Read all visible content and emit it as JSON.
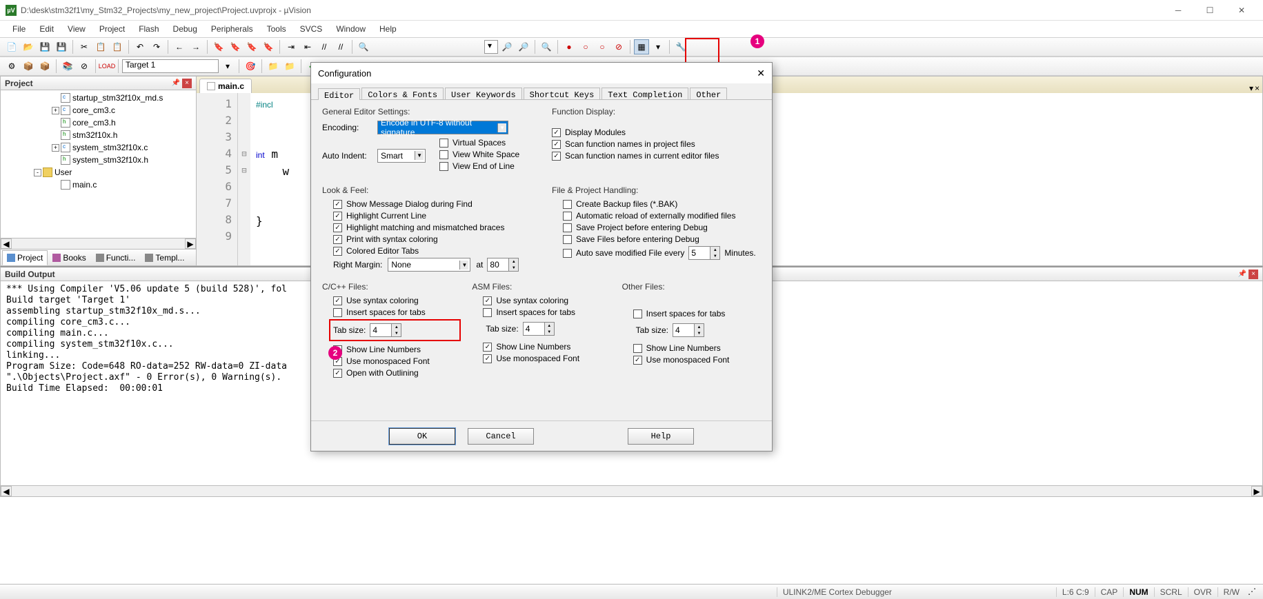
{
  "window": {
    "title": "D:\\desk\\stm32f1\\my_Stm32_Projects\\my_new_project\\Project.uvprojx - µVision",
    "appicon_text": "µV"
  },
  "menu": [
    "File",
    "Edit",
    "View",
    "Project",
    "Flash",
    "Debug",
    "Peripherals",
    "Tools",
    "SVCS",
    "Window",
    "Help"
  ],
  "toolbar2": {
    "target": "Target 1"
  },
  "callouts": {
    "n1": "1",
    "n2": "2"
  },
  "project_panel": {
    "title": "Project",
    "tree": [
      {
        "indent": 70,
        "icon": "cfile",
        "label": "startup_stm32f10x_md.s",
        "sq": ""
      },
      {
        "indent": 70,
        "icon": "cfile",
        "label": "core_cm3.c",
        "sq": "+"
      },
      {
        "indent": 70,
        "icon": "hfile",
        "label": "core_cm3.h",
        "sq": ""
      },
      {
        "indent": 70,
        "icon": "hfile",
        "label": "stm32f10x.h",
        "sq": ""
      },
      {
        "indent": 70,
        "icon": "cfile",
        "label": "system_stm32f10x.c",
        "sq": "+"
      },
      {
        "indent": 70,
        "icon": "hfile",
        "label": "system_stm32f10x.h",
        "sq": ""
      },
      {
        "indent": 44,
        "icon": "fold",
        "label": "User",
        "sq": "-"
      },
      {
        "indent": 70,
        "icon": "doc",
        "label": "main.c",
        "sq": ""
      }
    ],
    "tabs": [
      {
        "label": "Project",
        "active": true,
        "icon": "#5a8fce"
      },
      {
        "label": "Books",
        "active": false,
        "icon": "#b05aa0"
      },
      {
        "label": "Functi...",
        "active": false,
        "icon": "#888"
      },
      {
        "label": "Templ...",
        "active": false,
        "icon": "#888"
      }
    ]
  },
  "editor": {
    "filename": "main.c",
    "lines": [
      "1",
      "2",
      "3",
      "4",
      "5",
      "6",
      "7",
      "8",
      "9"
    ],
    "fold": [
      "",
      "",
      "",
      "⊟",
      "⊟",
      "",
      "",
      "",
      ""
    ],
    "code_html": "<span class='pp'>#incl</span>\n\n\n<span class='kw'>int</span> m\n    w\n\n\n}\n"
  },
  "build": {
    "title": "Build Output",
    "text": "*** Using Compiler 'V5.06 update 5 (build 528)', fol\nBuild target 'Target 1'\nassembling startup_stm32f10x_md.s...\ncompiling core_cm3.c...\ncompiling main.c...\ncompiling system_stm32f10x.c...\nlinking...\nProgram Size: Code=648 RO-data=252 RW-data=0 ZI-data\n\".\\Objects\\Project.axf\" - 0 Error(s), 0 Warning(s).\nBuild Time Elapsed:  00:00:01"
  },
  "status": {
    "debugger": "ULINK2/ME Cortex Debugger",
    "pos": "L:6 C:9",
    "cap": "CAP",
    "num": "NUM",
    "scrl": "SCRL",
    "ovr": "OVR",
    "rw": "R/W"
  },
  "dialog": {
    "title": "Configuration",
    "tabs": [
      "Editor",
      "Colors & Fonts",
      "User Keywords",
      "Shortcut Keys",
      "Text Completion",
      "Other"
    ],
    "active_tab": 0,
    "general": {
      "title": "General Editor Settings:",
      "encoding_label": "Encoding:",
      "encoding_value": "Encode in UTF-8 without signature",
      "autoindent_label": "Auto Indent:",
      "autoindent_value": "Smart",
      "virtual_spaces": "Virtual Spaces",
      "view_white": "View White Space",
      "view_eol": "View End of Line"
    },
    "function_display": {
      "title": "Function Display:",
      "display_modules": "Display Modules",
      "scan_project": "Scan function names in project files",
      "scan_editor": "Scan function names in current editor files"
    },
    "look_feel": {
      "title": "Look & Feel:",
      "msg_dialog": "Show Message Dialog during Find",
      "highlight_line": "Highlight Current Line",
      "highlight_braces": "Highlight matching and mismatched braces",
      "print_syntax": "Print with syntax coloring",
      "colored_tabs": "Colored Editor Tabs",
      "right_margin_label": "Right Margin:",
      "right_margin_value": "None",
      "at_label": "at",
      "at_value": "80"
    },
    "file_handling": {
      "title": "File & Project Handling:",
      "backup": "Create Backup files (*.BAK)",
      "auto_reload": "Automatic reload of externally modified files",
      "save_project_debug": "Save Project before entering Debug",
      "save_files_debug": "Save Files before entering Debug",
      "auto_save": "Auto save modified File every",
      "auto_save_value": "5",
      "minutes": "Minutes."
    },
    "cc_files": {
      "title": "C/C++ Files:",
      "syntax": "Use syntax coloring",
      "spaces": "Insert spaces for tabs",
      "tabsize_label": "Tab size:",
      "tabsize_value": "4",
      "linenum": "Show Line Numbers",
      "mono": "Use monospaced Font",
      "outline": "Open with Outlining"
    },
    "asm_files": {
      "title": "ASM Files:",
      "syntax": "Use syntax coloring",
      "spaces": "Insert spaces for tabs",
      "tabsize_label": "Tab size:",
      "tabsize_value": "4",
      "linenum": "Show Line Numbers",
      "mono": "Use monospaced Font"
    },
    "other_files": {
      "title": "Other Files:",
      "spaces": "Insert spaces for tabs",
      "tabsize_label": "Tab size:",
      "tabsize_value": "4",
      "linenum": "Show Line Numbers",
      "mono": "Use monospaced Font"
    },
    "buttons": {
      "ok": "OK",
      "cancel": "Cancel",
      "help": "Help"
    }
  },
  "colors": {
    "callout": "#e6007e",
    "redbox": "#e60000",
    "select_hl": "#0078d7"
  }
}
